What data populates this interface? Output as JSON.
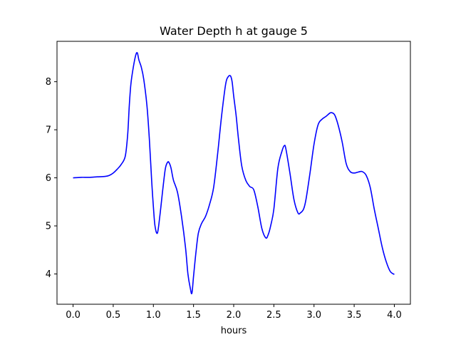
{
  "chart_data": {
    "type": "line",
    "title": "Water Depth h at gauge 5",
    "xlabel": "hours",
    "ylabel": "",
    "xlim": [
      -0.2,
      4.2
    ],
    "ylim": [
      3.37,
      8.84
    ],
    "xticks": [
      0.0,
      0.5,
      1.0,
      1.5,
      2.0,
      2.5,
      3.0,
      3.5,
      4.0
    ],
    "xtick_labels": [
      "0.0",
      "0.5",
      "1.0",
      "1.5",
      "2.0",
      "2.5",
      "3.0",
      "3.5",
      "4.0"
    ],
    "yticks": [
      4,
      5,
      6,
      7,
      8
    ],
    "ytick_labels": [
      "4",
      "5",
      "6",
      "7",
      "8"
    ],
    "grid": false,
    "series": [
      {
        "color": "#0000ff",
        "x": [
          0.0,
          0.1,
          0.2,
          0.3,
          0.4,
          0.45,
          0.5,
          0.55,
          0.6,
          0.65,
          0.68,
          0.7,
          0.72,
          0.75,
          0.78,
          0.8,
          0.82,
          0.85,
          0.88,
          0.92,
          0.95,
          0.98,
          1.0,
          1.02,
          1.05,
          1.08,
          1.12,
          1.15,
          1.18,
          1.2,
          1.22,
          1.25,
          1.3,
          1.35,
          1.4,
          1.43,
          1.46,
          1.48,
          1.5,
          1.53,
          1.56,
          1.6,
          1.65,
          1.7,
          1.75,
          1.8,
          1.85,
          1.9,
          1.93,
          1.96,
          1.98,
          2.0,
          2.03,
          2.06,
          2.1,
          2.15,
          2.2,
          2.25,
          2.3,
          2.35,
          2.4,
          2.43,
          2.46,
          2.5,
          2.55,
          2.6,
          2.63,
          2.65,
          2.7,
          2.75,
          2.8,
          2.83,
          2.87,
          2.9,
          2.95,
          3.0,
          3.05,
          3.1,
          3.15,
          3.2,
          3.23,
          3.26,
          3.3,
          3.35,
          3.4,
          3.45,
          3.5,
          3.55,
          3.6,
          3.65,
          3.7,
          3.75,
          3.8,
          3.85,
          3.9,
          3.95,
          4.0
        ],
        "values": [
          6.0,
          6.01,
          6.01,
          6.02,
          6.03,
          6.05,
          6.1,
          6.18,
          6.28,
          6.45,
          6.9,
          7.5,
          7.95,
          8.3,
          8.55,
          8.6,
          8.45,
          8.3,
          8.05,
          7.5,
          6.8,
          5.9,
          5.4,
          5.0,
          4.85,
          5.2,
          5.8,
          6.2,
          6.33,
          6.3,
          6.2,
          5.95,
          5.7,
          5.2,
          4.55,
          4.0,
          3.7,
          3.6,
          3.95,
          4.45,
          4.85,
          5.05,
          5.2,
          5.45,
          5.8,
          6.5,
          7.3,
          7.95,
          8.1,
          8.12,
          8.0,
          7.7,
          7.3,
          6.8,
          6.25,
          5.95,
          5.82,
          5.75,
          5.4,
          4.95,
          4.75,
          4.82,
          5.0,
          5.35,
          6.2,
          6.55,
          6.67,
          6.6,
          6.1,
          5.55,
          5.27,
          5.27,
          5.35,
          5.55,
          6.1,
          6.7,
          7.1,
          7.22,
          7.28,
          7.35,
          7.35,
          7.3,
          7.1,
          6.75,
          6.3,
          6.13,
          6.1,
          6.12,
          6.13,
          6.05,
          5.8,
          5.35,
          4.95,
          4.55,
          4.25,
          4.05,
          3.99
        ]
      }
    ]
  }
}
